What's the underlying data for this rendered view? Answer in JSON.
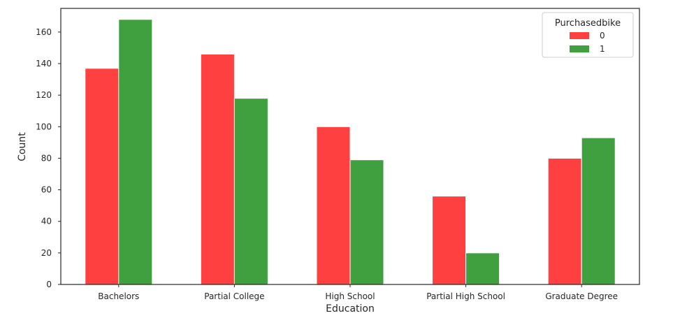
{
  "chart_data": {
    "type": "bar",
    "xlabel": "Education",
    "ylabel": "Count",
    "categories": [
      "Bachelors",
      "Partial College",
      "High School",
      "Partial High School",
      "Graduate Degree"
    ],
    "series": [
      {
        "name": "0",
        "color": "#ff4040",
        "values": [
          137,
          146,
          100,
          56,
          80
        ]
      },
      {
        "name": "1",
        "color": "#40a040",
        "values": [
          168,
          118,
          79,
          20,
          93
        ]
      }
    ],
    "ylim": [
      0,
      175
    ],
    "yticks": [
      0,
      20,
      40,
      60,
      80,
      100,
      120,
      140,
      160
    ],
    "grid": false,
    "legend": {
      "title": "Purchasedbike",
      "position": "top-right"
    }
  }
}
